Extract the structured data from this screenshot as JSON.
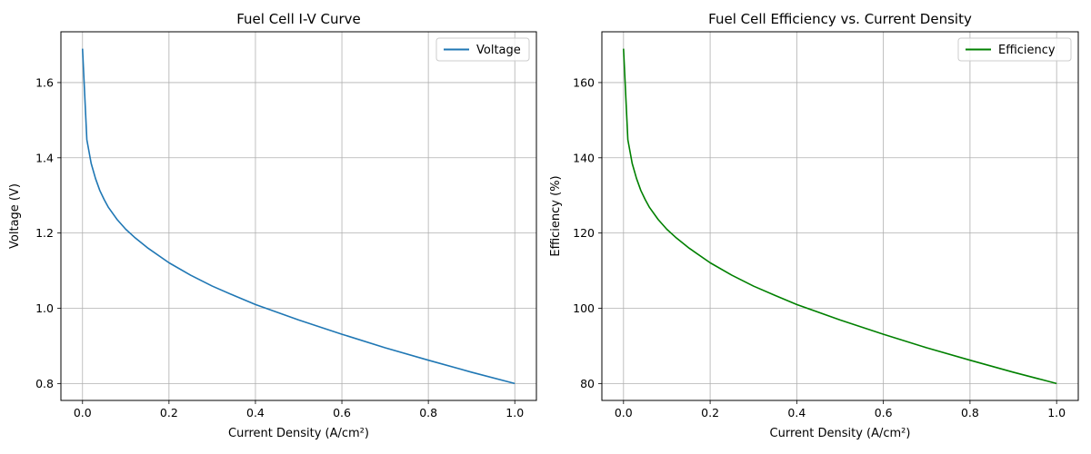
{
  "chart_data": [
    {
      "type": "line",
      "title": "Fuel Cell I-V Curve",
      "xlabel": "Current Density (A/cm²)",
      "ylabel": "Voltage (V)",
      "xlim": [
        -0.05,
        1.05
      ],
      "ylim": [
        0.755,
        1.735
      ],
      "xticks": [
        0.0,
        0.2,
        0.4,
        0.6,
        0.8,
        1.0
      ],
      "xtick_labels": [
        "0.0",
        "0.2",
        "0.4",
        "0.6",
        "0.8",
        "1.0"
      ],
      "yticks": [
        0.8,
        1.0,
        1.2,
        1.4,
        1.6
      ],
      "ytick_labels": [
        "0.8",
        "1.0",
        "1.2",
        "1.4",
        "1.6"
      ],
      "grid": true,
      "legend_position": "top-right",
      "series": [
        {
          "name": "Voltage",
          "color": "#1f77b4",
          "x": [
            0.0,
            0.01,
            0.02,
            0.03,
            0.04,
            0.05,
            0.06,
            0.08,
            0.1,
            0.12,
            0.15,
            0.2,
            0.25,
            0.3,
            0.35,
            0.4,
            0.5,
            0.6,
            0.7,
            0.8,
            0.9,
            1.0
          ],
          "y": [
            1.69,
            1.448,
            1.385,
            1.345,
            1.313,
            1.289,
            1.268,
            1.236,
            1.21,
            1.189,
            1.161,
            1.121,
            1.088,
            1.059,
            1.034,
            1.01,
            0.969,
            0.931,
            0.895,
            0.862,
            0.83,
            0.8
          ]
        }
      ]
    },
    {
      "type": "line",
      "title": "Fuel Cell Efficiency vs. Current Density",
      "xlabel": "Current Density (A/cm²)",
      "ylabel": "Efficiency (%)",
      "xlim": [
        -0.05,
        1.05
      ],
      "ylim": [
        75.5,
        173.5
      ],
      "xticks": [
        0.0,
        0.2,
        0.4,
        0.6,
        0.8,
        1.0
      ],
      "xtick_labels": [
        "0.0",
        "0.2",
        "0.4",
        "0.6",
        "0.8",
        "1.0"
      ],
      "yticks": [
        80,
        100,
        120,
        140,
        160
      ],
      "ytick_labels": [
        "80",
        "100",
        "120",
        "140",
        "160"
      ],
      "grid": true,
      "legend_position": "top-right",
      "series": [
        {
          "name": "Efficiency",
          "color": "#008000",
          "x": [
            0.0,
            0.01,
            0.02,
            0.03,
            0.04,
            0.05,
            0.06,
            0.08,
            0.1,
            0.12,
            0.15,
            0.2,
            0.25,
            0.3,
            0.35,
            0.4,
            0.5,
            0.6,
            0.7,
            0.8,
            0.9,
            1.0
          ],
          "y": [
            169.0,
            144.8,
            138.5,
            134.5,
            131.3,
            128.9,
            126.8,
            123.6,
            121.0,
            118.9,
            116.1,
            112.1,
            108.8,
            105.9,
            103.4,
            101.0,
            96.9,
            93.1,
            89.5,
            86.2,
            83.0,
            80.0
          ]
        }
      ]
    }
  ]
}
